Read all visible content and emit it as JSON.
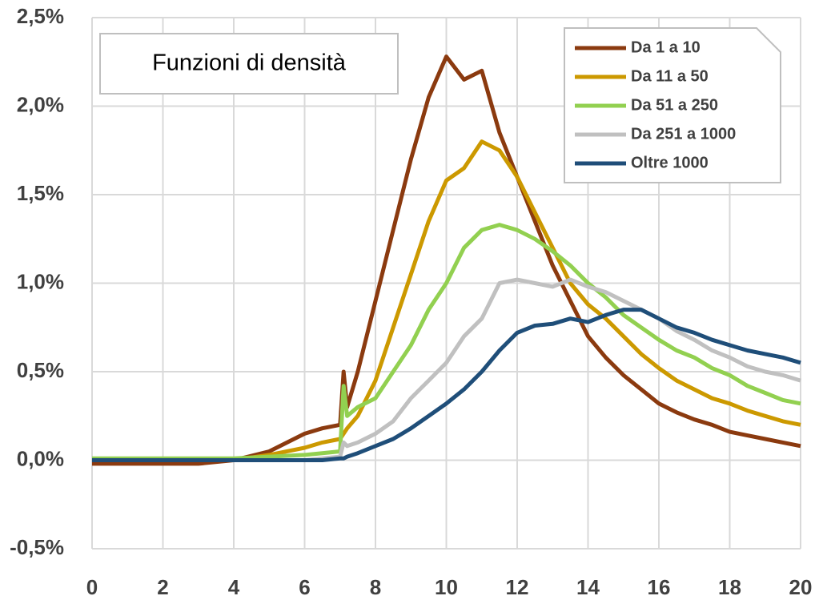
{
  "chart_data": {
    "type": "line",
    "title": "Funzioni di densità",
    "x": [
      0,
      1,
      2,
      3,
      4,
      5,
      6,
      6.5,
      7,
      7.1,
      7.2,
      7.5,
      8,
      8.5,
      9,
      9.5,
      10,
      10.5,
      11,
      11.5,
      12,
      12.5,
      13,
      13.5,
      14,
      14.5,
      15,
      15.5,
      16,
      16.5,
      17,
      17.5,
      18,
      18.5,
      19,
      19.5,
      20
    ],
    "series": [
      {
        "name": "Da 1 a 10",
        "color": "#8B3A0F",
        "values": [
          -0.02,
          -0.02,
          -0.02,
          -0.02,
          0,
          0.05,
          0.15,
          0.18,
          0.2,
          0.5,
          0.3,
          0.5,
          0.9,
          1.3,
          1.7,
          2.05,
          2.28,
          2.15,
          2.2,
          1.85,
          1.6,
          1.35,
          1.1,
          0.9,
          0.7,
          0.58,
          0.48,
          0.4,
          0.32,
          0.27,
          0.23,
          0.2,
          0.16,
          0.14,
          0.12,
          0.1,
          0.08
        ]
      },
      {
        "name": "Da 11 a 50",
        "color": "#CC9900",
        "values": [
          0,
          0,
          0,
          0,
          0,
          0.03,
          0.07,
          0.1,
          0.12,
          0.15,
          0.18,
          0.25,
          0.45,
          0.75,
          1.05,
          1.35,
          1.58,
          1.65,
          1.8,
          1.75,
          1.6,
          1.4,
          1.2,
          1.0,
          0.88,
          0.8,
          0.7,
          0.6,
          0.52,
          0.45,
          0.4,
          0.35,
          0.32,
          0.28,
          0.25,
          0.22,
          0.2
        ]
      },
      {
        "name": "Da 51 a 250",
        "color": "#92D050",
        "values": [
          0.01,
          0.01,
          0.01,
          0.01,
          0.01,
          0.02,
          0.03,
          0.04,
          0.05,
          0.42,
          0.25,
          0.3,
          0.35,
          0.5,
          0.65,
          0.85,
          1.0,
          1.2,
          1.3,
          1.33,
          1.3,
          1.25,
          1.18,
          1.1,
          1.0,
          0.92,
          0.82,
          0.75,
          0.68,
          0.62,
          0.58,
          0.52,
          0.48,
          0.42,
          0.38,
          0.34,
          0.32
        ]
      },
      {
        "name": "Da 251 a 1000",
        "color": "#C0C0C0",
        "values": [
          0,
          0,
          0,
          0,
          0,
          0,
          0,
          0.01,
          0.02,
          0.1,
          0.08,
          0.1,
          0.15,
          0.22,
          0.35,
          0.45,
          0.55,
          0.7,
          0.8,
          1.0,
          1.02,
          1.0,
          0.98,
          1.02,
          0.98,
          0.95,
          0.9,
          0.85,
          0.8,
          0.73,
          0.68,
          0.62,
          0.58,
          0.53,
          0.5,
          0.48,
          0.45
        ]
      },
      {
        "name": "Oltre 1000",
        "color": "#1F4E79",
        "values": [
          0,
          0,
          0,
          0,
          0,
          0,
          0,
          0,
          0.01,
          0.01,
          0.02,
          0.04,
          0.08,
          0.12,
          0.18,
          0.25,
          0.32,
          0.4,
          0.5,
          0.62,
          0.72,
          0.76,
          0.77,
          0.8,
          0.78,
          0.82,
          0.85,
          0.85,
          0.8,
          0.75,
          0.72,
          0.68,
          0.65,
          0.62,
          0.6,
          0.58,
          0.55
        ]
      }
    ],
    "xlim": [
      0,
      20
    ],
    "xticks": [
      0,
      2,
      4,
      6,
      8,
      10,
      12,
      14,
      16,
      18,
      20
    ],
    "ylim": [
      -0.5,
      2.5
    ],
    "yticks": [
      {
        "value": -0.5,
        "label": "-0,5%"
      },
      {
        "value": 0,
        "label": "0,0%"
      },
      {
        "value": 0.5,
        "label": "0,5%"
      },
      {
        "value": 1,
        "label": "1,0%"
      },
      {
        "value": 1.5,
        "label": "1,5%"
      },
      {
        "value": 2,
        "label": "2,0%"
      },
      {
        "value": 2.5,
        "label": "2,5%"
      }
    ],
    "grid": true,
    "legend": "top-right"
  }
}
